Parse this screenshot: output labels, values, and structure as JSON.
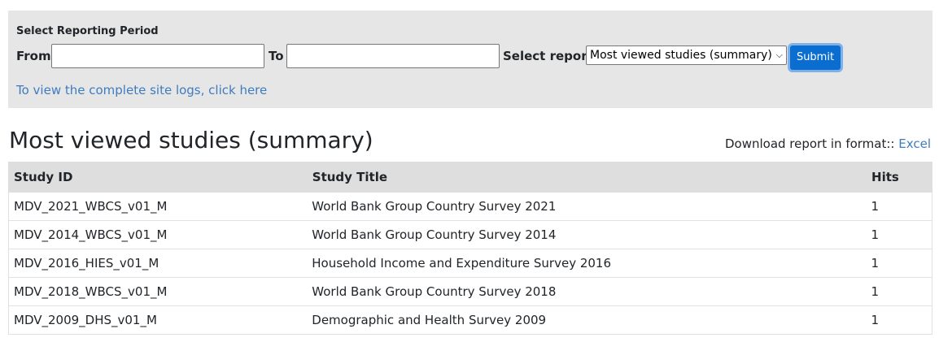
{
  "filter": {
    "heading": "Select Reporting Period",
    "from_label": "From",
    "from_value": "",
    "to_label": "To",
    "to_value": "",
    "report_label": "Select report",
    "report_selected": "Most viewed studies (summary)",
    "submit_label": "Submit",
    "site_logs_link": "To view the complete site logs, click here"
  },
  "report": {
    "title": "Most viewed studies (summary)",
    "download_label": "Download report in format::",
    "download_link": "Excel"
  },
  "table": {
    "headers": [
      "Study ID",
      "Study Title",
      "Hits"
    ],
    "rows": [
      [
        "MDV_2021_WBCS_v01_M",
        "World Bank Group Country Survey 2021",
        "1"
      ],
      [
        "MDV_2014_WBCS_v01_M",
        "World Bank Group Country Survey 2014",
        "1"
      ],
      [
        "MDV_2016_HIES_v01_M",
        "Household Income and Expenditure Survey 2016",
        "1"
      ],
      [
        "MDV_2018_WBCS_v01_M",
        "World Bank Group Country Survey 2018",
        "1"
      ],
      [
        "MDV_2009_DHS_v01_M",
        "Demographic and Health Survey 2009",
        "1"
      ]
    ]
  },
  "colors": {
    "panel_bg": "#e6e6e6",
    "link": "#3f7cbf",
    "button": "#0a6ed1",
    "table_header_bg": "#dedede"
  }
}
